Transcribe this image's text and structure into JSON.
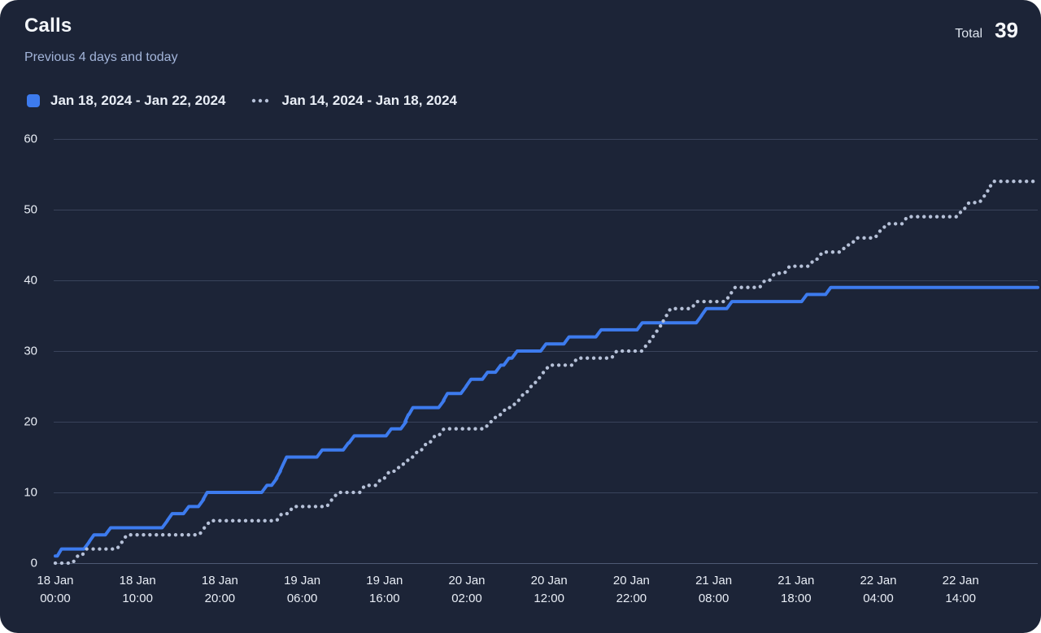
{
  "header": {
    "title": "Calls",
    "subtitle": "Previous 4 days and today",
    "total_label": "Total",
    "total_value": "39"
  },
  "legend": [
    {
      "label": "Jan 18, 2024 - Jan 22, 2024",
      "marker": "solid-square"
    },
    {
      "label": "Jan 14, 2024 - Jan 18, 2024",
      "marker": "dotted-line"
    }
  ],
  "colors": {
    "card_background": "#1c2437",
    "current_series": "#3d7bee",
    "previous_series": "#b6c1d8",
    "gridline": "#39435b",
    "axis_label": "#e8edf5"
  },
  "chart_data": {
    "type": "line",
    "subtype": "cumulative-step",
    "title": "Calls",
    "xlabel": "",
    "ylabel": "",
    "grid": "horizontal",
    "legend_position": "top-left",
    "x_unit": "hours from period start (18 Jan 00:00)",
    "x_range": [
      0,
      119.4
    ],
    "y_range": [
      0,
      60
    ],
    "y_ticks": [
      0,
      10,
      20,
      30,
      40,
      50,
      60
    ],
    "x_ticks": [
      {
        "date": "18 Jan",
        "time": "00:00"
      },
      {
        "date": "18 Jan",
        "time": "10:00"
      },
      {
        "date": "18 Jan",
        "time": "20:00"
      },
      {
        "date": "19 Jan",
        "time": "06:00"
      },
      {
        "date": "19 Jan",
        "time": "16:00"
      },
      {
        "date": "20 Jan",
        "time": "02:00"
      },
      {
        "date": "20 Jan",
        "time": "12:00"
      },
      {
        "date": "20 Jan",
        "time": "22:00"
      },
      {
        "date": "21 Jan",
        "time": "08:00"
      },
      {
        "date": "21 Jan",
        "time": "18:00"
      },
      {
        "date": "22 Jan",
        "time": "04:00"
      },
      {
        "date": "22 Jan",
        "time": "14:00"
      }
    ],
    "series": [
      {
        "name": "Jan 18, 2024 - Jan 22, 2024",
        "style": "solid",
        "color": "#3d7bee",
        "final_value": 39,
        "points": [
          [
            0,
            1
          ],
          [
            0.5,
            2
          ],
          [
            3.8,
            3
          ],
          [
            4.4,
            4
          ],
          [
            6.4,
            5
          ],
          [
            13.3,
            6
          ],
          [
            13.9,
            7
          ],
          [
            15.9,
            8
          ],
          [
            17.7,
            9
          ],
          [
            18.2,
            10
          ],
          [
            25.4,
            11
          ],
          [
            26.6,
            12
          ],
          [
            27.1,
            13
          ],
          [
            27.5,
            14
          ],
          [
            27.9,
            15
          ],
          [
            32.1,
            16
          ],
          [
            35.3,
            17
          ],
          [
            36,
            18
          ],
          [
            40.5,
            19
          ],
          [
            42.3,
            20
          ],
          [
            42.7,
            21
          ],
          [
            43.2,
            22
          ],
          [
            46.9,
            23
          ],
          [
            47.4,
            24
          ],
          [
            49.6,
            25
          ],
          [
            50.2,
            26
          ],
          [
            52.2,
            27
          ],
          [
            53.8,
            28
          ],
          [
            54.8,
            29
          ],
          [
            55.8,
            30
          ],
          [
            59.3,
            31
          ],
          [
            62.1,
            32
          ],
          [
            66,
            33
          ],
          [
            71,
            34
          ],
          [
            78.2,
            35
          ],
          [
            78.8,
            36
          ],
          [
            81.9,
            37
          ],
          [
            91,
            38
          ],
          [
            93.9,
            39
          ]
        ]
      },
      {
        "name": "Jan 14, 2024 - Jan 18, 2024",
        "style": "dotted",
        "color": "#b6c1d8",
        "final_value": 54,
        "points": [
          [
            0,
            0
          ],
          [
            2.4,
            1
          ],
          [
            3.5,
            2
          ],
          [
            7.8,
            3
          ],
          [
            8.4,
            4
          ],
          [
            17.8,
            5
          ],
          [
            18.5,
            6
          ],
          [
            27.2,
            7
          ],
          [
            28.6,
            8
          ],
          [
            33.3,
            9
          ],
          [
            34,
            10
          ],
          [
            37.3,
            11
          ],
          [
            39.3,
            12
          ],
          [
            40.3,
            13
          ],
          [
            41.7,
            14
          ],
          [
            42.8,
            15
          ],
          [
            43.8,
            16
          ],
          [
            44.8,
            17
          ],
          [
            45.8,
            18
          ],
          [
            46.9,
            19
          ],
          [
            52.5,
            20
          ],
          [
            53.4,
            21
          ],
          [
            54.5,
            22
          ],
          [
            55.8,
            23
          ],
          [
            56.6,
            24
          ],
          [
            57.5,
            25
          ],
          [
            58.3,
            26
          ],
          [
            59,
            27
          ],
          [
            59.7,
            28
          ],
          [
            63.1,
            29
          ],
          [
            67.9,
            30
          ],
          [
            71.6,
            31
          ],
          [
            72.3,
            32
          ],
          [
            72.9,
            33
          ],
          [
            73.5,
            34
          ],
          [
            74,
            35
          ],
          [
            74.5,
            36
          ],
          [
            77.6,
            37
          ],
          [
            81.7,
            38
          ],
          [
            82.3,
            39
          ],
          [
            85.9,
            40
          ],
          [
            87.1,
            41
          ],
          [
            88.9,
            42
          ],
          [
            91.9,
            43
          ],
          [
            92.9,
            44
          ],
          [
            95.8,
            45
          ],
          [
            97,
            46
          ],
          [
            99.9,
            47
          ],
          [
            100.7,
            48
          ],
          [
            103.2,
            49
          ],
          [
            109.9,
            50
          ],
          [
            110.7,
            51
          ],
          [
            112.6,
            52
          ],
          [
            113.2,
            53
          ],
          [
            113.7,
            54
          ]
        ]
      }
    ]
  }
}
